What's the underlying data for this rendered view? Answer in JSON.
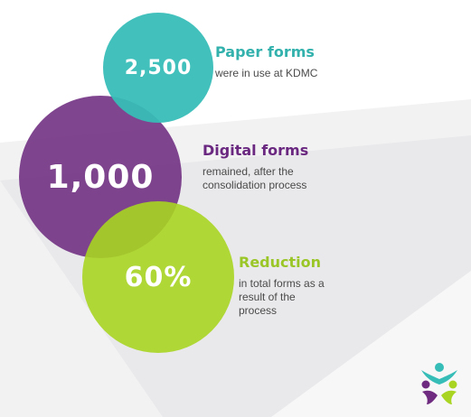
{
  "stats": [
    {
      "value": "2,500",
      "title": "Paper forms",
      "description": "were in use at KDMC"
    },
    {
      "value": "1,000",
      "title": "Digital forms",
      "description_lines": [
        "remained, after the",
        "consolidation process"
      ]
    },
    {
      "value": "60%",
      "title": "Reduction",
      "description_lines": [
        "in total forms as a",
        "result of the",
        "process"
      ]
    }
  ],
  "colors": {
    "teal": "#36bdb8",
    "purple": "#6e2b7f",
    "lime": "#a9d522",
    "text_gray": "#4a4a4a"
  },
  "icons": {
    "logo": "figures-logo-icon"
  }
}
